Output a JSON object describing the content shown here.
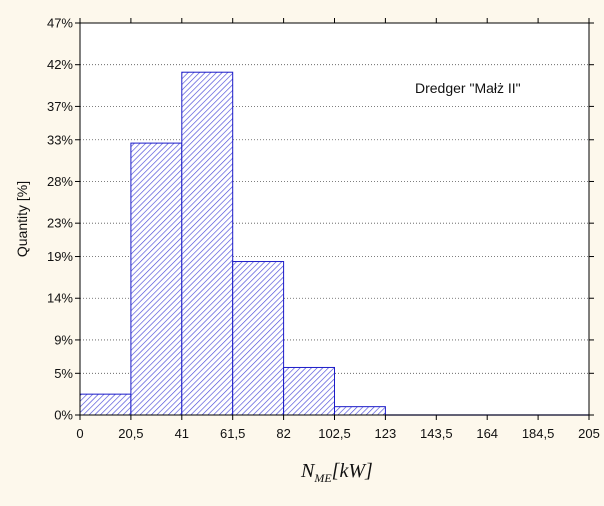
{
  "chart_data": {
    "type": "bar",
    "bins": [
      {
        "from": 0,
        "to": 20.5,
        "value": 2.5
      },
      {
        "from": 20.5,
        "to": 41,
        "value": 32.6
      },
      {
        "from": 41,
        "to": 61.5,
        "value": 41.1
      },
      {
        "from": 61.5,
        "to": 82,
        "value": 18.4
      },
      {
        "from": 82,
        "to": 102.5,
        "value": 5.7
      },
      {
        "from": 102.5,
        "to": 123,
        "value": 1.0
      },
      {
        "from": 123,
        "to": 143.5,
        "value": 0
      },
      {
        "from": 143.5,
        "to": 164,
        "value": 0
      },
      {
        "from": 164,
        "to": 184.5,
        "value": 0
      },
      {
        "from": 184.5,
        "to": 205,
        "value": 0
      }
    ],
    "xlim": [
      0,
      205
    ],
    "ylim": [
      0,
      47
    ],
    "x_ticks": [
      0,
      20.5,
      41,
      61.5,
      82,
      102.5,
      123,
      143.5,
      164,
      184.5,
      205
    ],
    "x_tick_labels": [
      "0",
      "20,5",
      "41",
      "61,5",
      "82",
      "102,5",
      "123",
      "143,5",
      "164",
      "184,5",
      "205"
    ],
    "y_ticks": [
      0,
      5,
      9,
      14,
      19,
      23,
      28,
      33,
      37,
      42,
      47
    ],
    "y_tick_labels": [
      "0%",
      "5%",
      "9%",
      "14%",
      "19%",
      "23%",
      "28%",
      "33%",
      "37%",
      "42%",
      "47%"
    ],
    "ylabel": "Quantity [%]",
    "xlabel": {
      "base": "N",
      "subscript": "ME",
      "rest": "[kW]"
    },
    "annotation": "Dredger \"Małż II\"",
    "grid": "horizontal dotted",
    "colors": {
      "bar_edge": "#1c1cc8",
      "bar_hatch": "#4a4ad8",
      "bar_fill": "#ffffff",
      "plot_bg": "#ffffff",
      "page_bg": "#fdf8ec",
      "axis": "#000000",
      "grid": "#555555"
    }
  }
}
